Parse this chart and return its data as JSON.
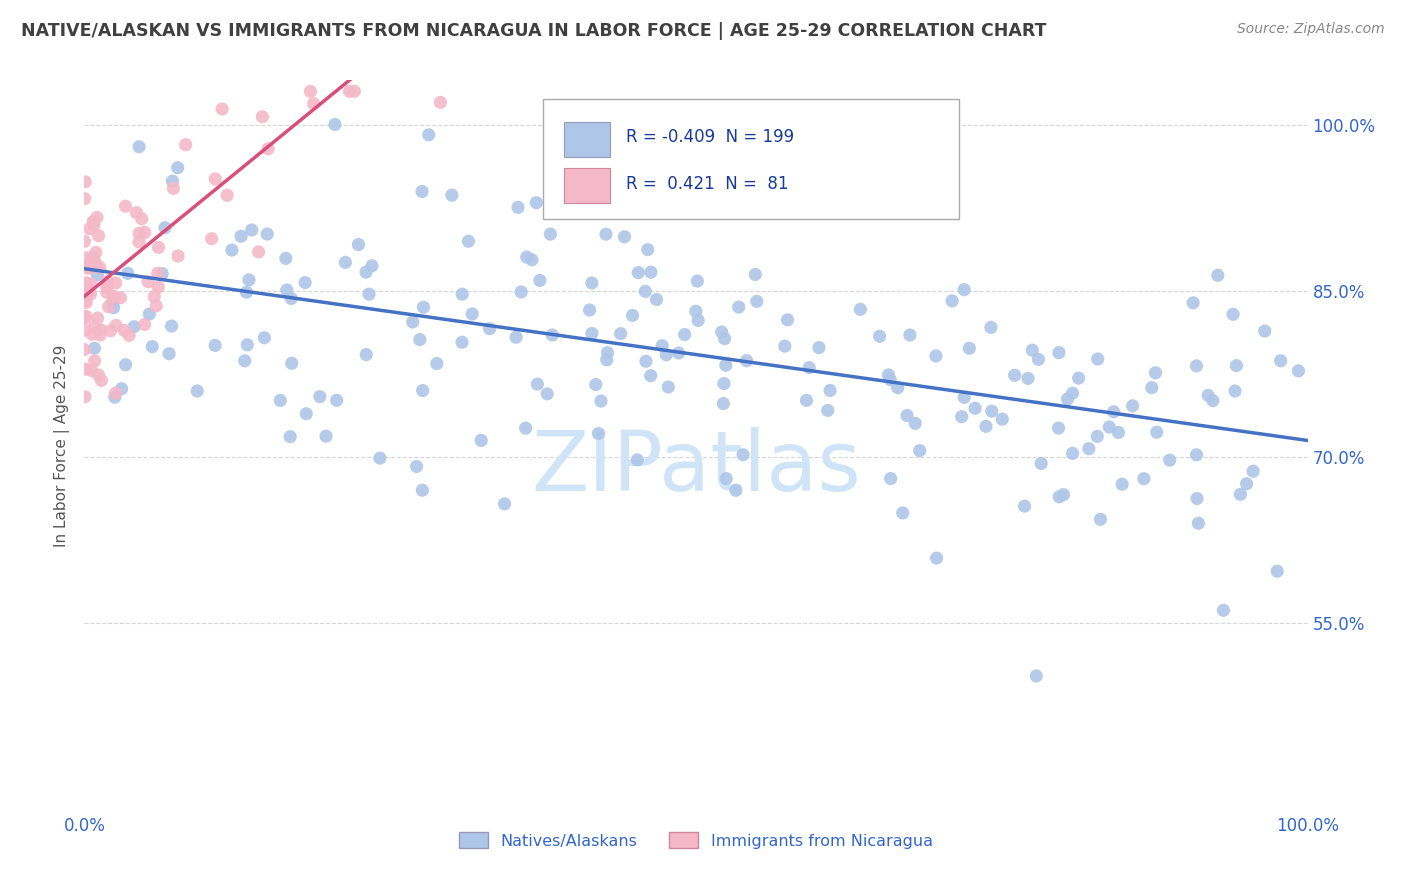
{
  "title": "NATIVE/ALASKAN VS IMMIGRANTS FROM NICARAGUA IN LABOR FORCE | AGE 25-29 CORRELATION CHART",
  "source_text": "Source: ZipAtlas.com",
  "ylabel": "In Labor Force | Age 25-29",
  "xmin": 0.0,
  "xmax": 1.0,
  "ymin": 0.38,
  "ymax": 1.04,
  "x_tick_labels": [
    "0.0%",
    "100.0%"
  ],
  "y_tick_labels": [
    "55.0%",
    "70.0%",
    "85.0%",
    "100.0%"
  ],
  "y_tick_positions": [
    0.55,
    0.7,
    0.85,
    1.0
  ],
  "legend_r_blue": "-0.409",
  "legend_n_blue": "199",
  "legend_r_pink": "0.421",
  "legend_n_pink": "81",
  "blue_color": "#aec6e8",
  "pink_color": "#f4b8c8",
  "blue_line_color": "#4472c4",
  "pink_line_color": "#d94f7a",
  "title_color": "#404040",
  "watermark_text": "ZIPatlas",
  "watermark_color": "#d0e4f7",
  "legend_label_blue": "Natives/Alaskans",
  "legend_label_pink": "Immigrants from Nicaragua",
  "blue_slope": -0.155,
  "blue_intercept": 0.87,
  "pink_slope": 0.9,
  "pink_intercept": 0.845
}
